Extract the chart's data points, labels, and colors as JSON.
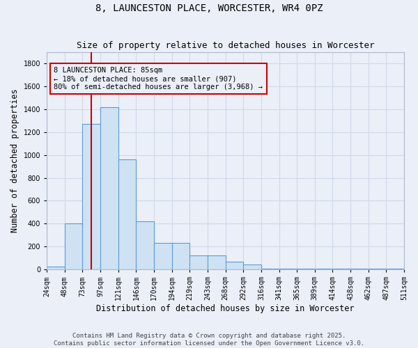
{
  "title": "8, LAUNCESTON PLACE, WORCESTER, WR4 0PZ",
  "subtitle": "Size of property relative to detached houses in Worcester",
  "xlabel": "Distribution of detached houses by size in Worcester",
  "ylabel": "Number of detached properties",
  "categories": [
    "24sqm",
    "48sqm",
    "73sqm",
    "97sqm",
    "121sqm",
    "146sqm",
    "170sqm",
    "194sqm",
    "219sqm",
    "243sqm",
    "268sqm",
    "292sqm",
    "316sqm",
    "341sqm",
    "365sqm",
    "389sqm",
    "414sqm",
    "438sqm",
    "462sqm",
    "487sqm",
    "511sqm"
  ],
  "bar_heights": [
    25,
    400,
    1270,
    1420,
    960,
    420,
    235,
    235,
    120,
    120,
    70,
    45,
    10,
    10,
    10,
    10,
    10,
    5,
    5,
    5
  ],
  "bar_color": "#cfe2f3",
  "bar_edge_color": "#5b9bd5",
  "grid_color": "#d0d8e8",
  "background_color": "#eaeff8",
  "property_line_index": 2.5,
  "property_line_color": "#cc0000",
  "annotation_text": "8 LAUNCESTON PLACE: 85sqm\n← 18% of detached houses are smaller (907)\n80% of semi-detached houses are larger (3,968) →",
  "annotation_box_color": "#cc0000",
  "ylim": [
    0,
    1900
  ],
  "yticks": [
    0,
    200,
    400,
    600,
    800,
    1000,
    1200,
    1400,
    1600,
    1800
  ],
  "footnote1": "Contains HM Land Registry data © Crown copyright and database right 2025.",
  "footnote2": "Contains public sector information licensed under the Open Government Licence v3.0.",
  "title_fontsize": 10,
  "subtitle_fontsize": 9,
  "tick_fontsize": 7,
  "label_fontsize": 8.5,
  "annotation_fontsize": 7.5
}
